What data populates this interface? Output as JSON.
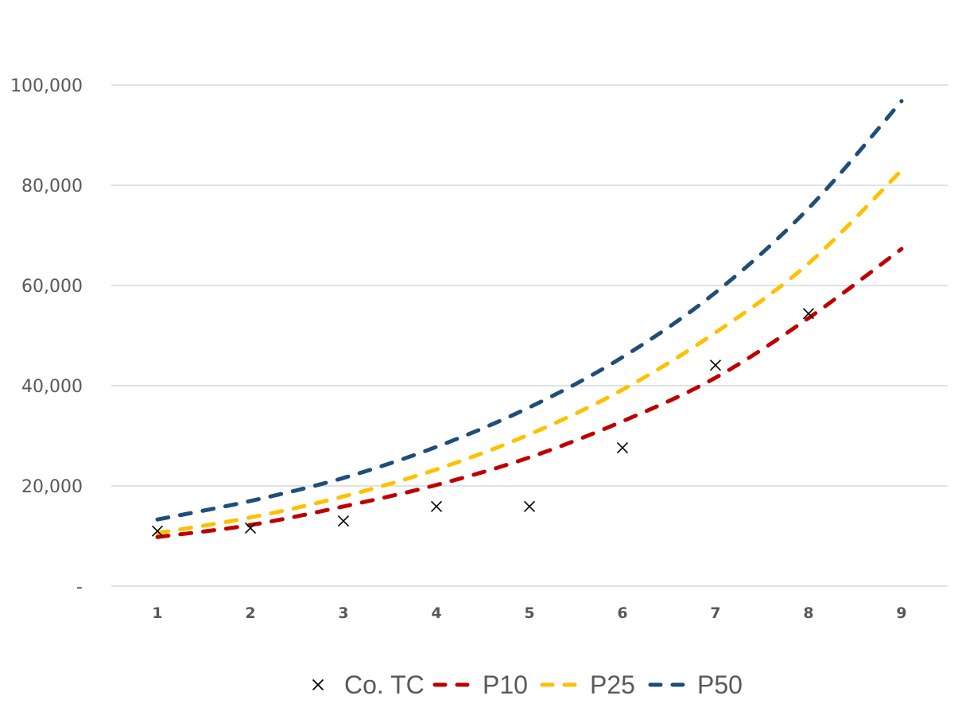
{
  "chart_data": {
    "type": "line",
    "title": "",
    "xlabel": "",
    "ylabel": "",
    "x": [
      1,
      2,
      3,
      4,
      5,
      6,
      7,
      8,
      9
    ],
    "x_tick_labels": [
      "1",
      "2",
      "3",
      "4",
      "5",
      "6",
      "7",
      "8",
      "9"
    ],
    "ylim": [
      0,
      100000
    ],
    "y_ticks": [
      0,
      20000,
      40000,
      60000,
      80000,
      100000
    ],
    "y_tick_labels": [
      "-",
      "20,000",
      "40,000",
      "60,000",
      "80,000",
      "100,000"
    ],
    "grid": true,
    "legend_position": "bottom",
    "series": [
      {
        "name": "Co. TC",
        "style": "markers",
        "marker": "x",
        "color": "#000000",
        "values": [
          11000,
          11600,
          13000,
          15900,
          15900,
          27600,
          44100,
          54400,
          null
        ]
      },
      {
        "name": "P10",
        "style": "dashed-line",
        "color": "#C00000",
        "values": [
          9800,
          12200,
          15900,
          20200,
          25700,
          32900,
          41600,
          53500,
          67300
        ]
      },
      {
        "name": "P25",
        "style": "dashed-line",
        "color": "#FFC000",
        "values": [
          10600,
          13700,
          17900,
          23300,
          30300,
          39200,
          50600,
          64400,
          83000
        ]
      },
      {
        "name": "P50",
        "style": "dashed-line",
        "color": "#1F4E79",
        "values": [
          13300,
          17000,
          21600,
          27800,
          35700,
          45700,
          58600,
          75400,
          96800
        ]
      }
    ]
  }
}
